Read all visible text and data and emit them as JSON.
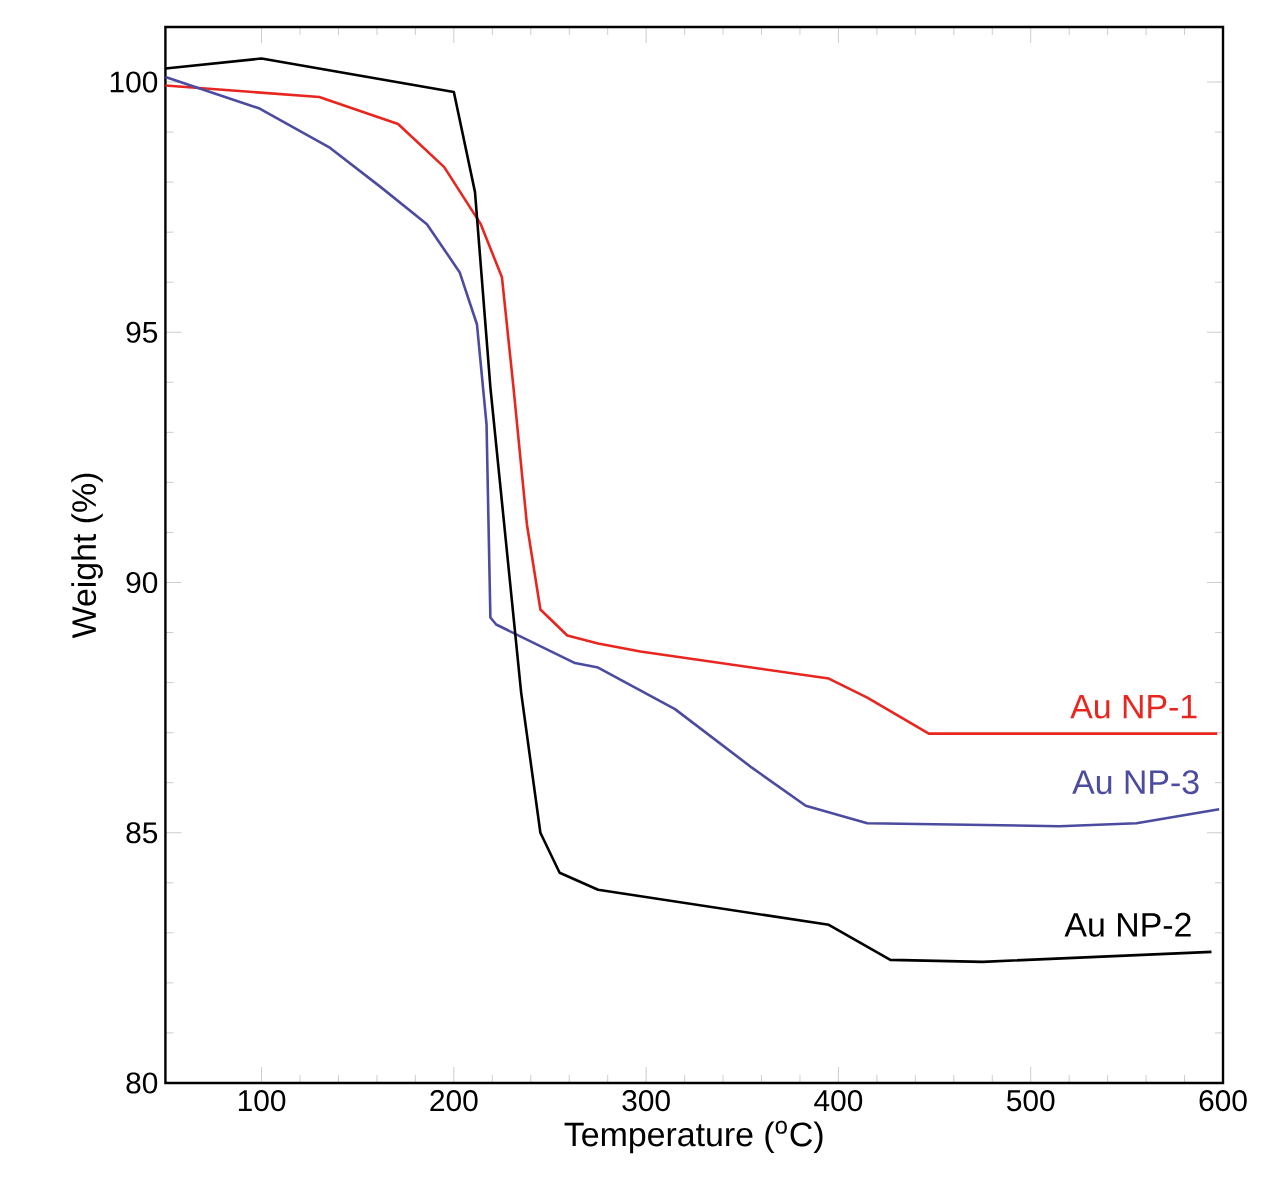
{
  "chart_data": {
    "type": "line",
    "xlabel": "Temperature ($^{o}$C)",
    "ylabel": "Weight (%)",
    "xlim": [
      50,
      600
    ],
    "ylim": [
      80,
      101.1
    ],
    "xticks": [
      100,
      200,
      300,
      400,
      500,
      600
    ],
    "yticks": [
      80,
      85,
      90,
      95,
      100
    ],
    "grid": false,
    "legend": false,
    "marker": "none",
    "line_style": "solid",
    "series": [
      {
        "name": "Au NP-1",
        "color": "#e8261f",
        "x": [
          50,
          130,
          171,
          195,
          214,
          225,
          231,
          238,
          245,
          259,
          275,
          297,
          395,
          415,
          447,
          597
        ],
        "values": [
          99.93,
          99.7,
          99.16,
          98.3,
          97.16,
          96.1,
          93.9,
          91.16,
          89.46,
          88.94,
          88.78,
          88.62,
          88.08,
          87.7,
          86.98,
          86.98
        ]
      },
      {
        "name": "Au NP-3",
        "color": "#4b4ba0",
        "x": [
          50,
          99,
          135,
          162,
          186,
          203,
          212,
          217,
          219,
          222,
          263,
          275,
          315,
          355,
          383,
          415,
          515,
          555,
          598
        ],
        "values": [
          100.1,
          99.47,
          98.7,
          97.9,
          97.16,
          96.2,
          95.16,
          93.16,
          89.3,
          89.16,
          88.39,
          88.3,
          87.47,
          86.3,
          85.54,
          85.19,
          85.13,
          85.19,
          85.47
        ]
      },
      {
        "name": "Au NP-2",
        "color": "#000000",
        "x": [
          50,
          100,
          200,
          211,
          219,
          235,
          245,
          255,
          275,
          395,
          427,
          475,
          594
        ],
        "values": [
          100.27,
          100.47,
          99.8,
          97.8,
          93.9,
          87.8,
          85.0,
          84.2,
          83.86,
          83.16,
          82.46,
          82.42,
          82.62
        ]
      }
    ]
  }
}
